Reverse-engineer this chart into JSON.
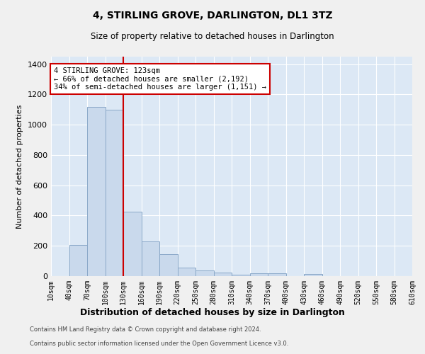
{
  "title": "4, STIRLING GROVE, DARLINGTON, DL1 3TZ",
  "subtitle": "Size of property relative to detached houses in Darlington",
  "xlabel": "Distribution of detached houses by size in Darlington",
  "ylabel": "Number of detached properties",
  "annotation_text": "4 STIRLING GROVE: 123sqm\n← 66% of detached houses are smaller (2,192)\n34% of semi-detached houses are larger (1,151) →",
  "bin_edges": [
    10,
    40,
    70,
    100,
    130,
    160,
    190,
    220,
    250,
    280,
    310,
    340,
    370,
    400,
    430,
    460,
    490,
    520,
    550,
    580,
    610
  ],
  "bar_values": [
    0,
    205,
    1120,
    1100,
    425,
    230,
    145,
    55,
    38,
    23,
    8,
    18,
    18,
    0,
    12,
    0,
    0,
    0,
    0,
    0
  ],
  "bar_color": "#c9d9ec",
  "bar_edge_color": "#8aa8c8",
  "vline_color": "#cc0000",
  "vline_x": 130,
  "annotation_box_edge_color": "#cc0000",
  "plot_bg_color": "#dce8f5",
  "fig_bg_color": "#f0f0f0",
  "grid_color": "#ffffff",
  "ylim": [
    0,
    1450
  ],
  "yticks": [
    0,
    200,
    400,
    600,
    800,
    1000,
    1200,
    1400
  ],
  "footer_line1": "Contains HM Land Registry data © Crown copyright and database right 2024.",
  "footer_line2": "Contains public sector information licensed under the Open Government Licence v3.0."
}
